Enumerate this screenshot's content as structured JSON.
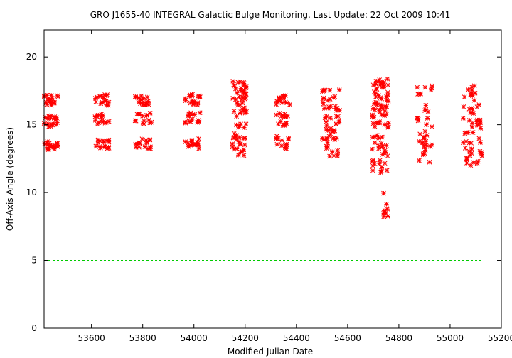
{
  "chart_data": {
    "type": "scatter",
    "title": "GRO J1655-40   INTEGRAL Galactic Bulge Monitoring.  Last Update: 22 Oct 2009 10:41",
    "xlabel": "Modified Julian Date",
    "ylabel": "Off-Axis Angle (degrees)",
    "xlim": [
      53415,
      55200
    ],
    "ylim": [
      0,
      22
    ],
    "x_ticks": [
      53600,
      53800,
      54000,
      54200,
      54400,
      54600,
      54800,
      55000,
      55200
    ],
    "y_ticks": [
      0,
      5,
      10,
      15,
      20
    ],
    "grid": false,
    "legend": "none",
    "marker": "asterisk",
    "colors": {
      "points": "#ff0000",
      "reference_line": "#00cc00",
      "frame": "#000000"
    },
    "reference_line": {
      "y": 5,
      "x_from": 53415,
      "x_to": 55120,
      "style": "dashed"
    },
    "clusters": [
      {
        "x_from": 53415,
        "x_to": 53470,
        "y_levels": [
          17.0,
          16.6,
          15.5,
          15.0,
          13.6,
          13.3
        ],
        "count": 60
      },
      {
        "x_from": 53610,
        "x_to": 53670,
        "y_levels": [
          17.1,
          16.6,
          15.7,
          15.2,
          13.8,
          13.4
        ],
        "count": 50
      },
      {
        "x_from": 53770,
        "x_to": 53835,
        "y_levels": [
          17.0,
          16.6,
          15.8,
          15.2,
          13.8,
          13.4
        ],
        "count": 50
      },
      {
        "x_from": 53965,
        "x_to": 54025,
        "y_levels": [
          17.1,
          16.6,
          15.8,
          15.3,
          13.8,
          13.4
        ],
        "count": 50
      },
      {
        "x_from": 54150,
        "x_to": 54205,
        "y_min": 12.7,
        "y_max": 18.3,
        "count": 70
      },
      {
        "x_from": 54320,
        "x_to": 54375,
        "y_levels": [
          17.0,
          16.6,
          15.7,
          15.1,
          14.0,
          13.4
        ],
        "count": 45
      },
      {
        "x_from": 54500,
        "x_to": 54570,
        "y_min": 12.6,
        "y_max": 17.7,
        "count": 60
      },
      {
        "x_from": 54695,
        "x_to": 54760,
        "y_min": 11.4,
        "y_max": 18.4,
        "count": 90
      },
      {
        "x_from": 54740,
        "x_to": 54760,
        "y_min": 8.1,
        "y_max": 10.0,
        "count": 10
      },
      {
        "x_from": 54870,
        "x_to": 54930,
        "y_min": 12.2,
        "y_max": 17.9,
        "count": 40
      },
      {
        "x_from": 55050,
        "x_to": 55125,
        "y_min": 12.0,
        "y_max": 17.9,
        "count": 60
      }
    ]
  }
}
